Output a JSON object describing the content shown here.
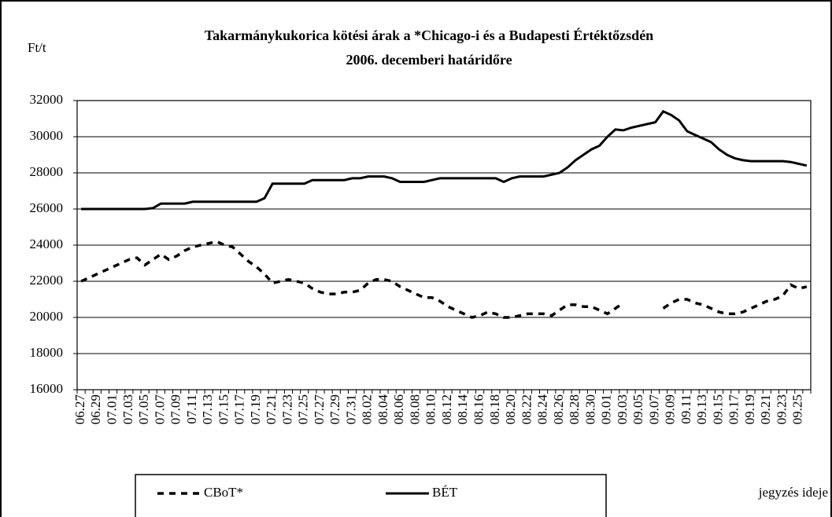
{
  "chart_data": {
    "type": "line",
    "title": [
      "Takarmánykukorica kötési árak a *Chicago-i és a Budapesti Értéktőzsdén",
      "2006. decemberi határidőre"
    ],
    "y_label": "Ft/t",
    "x_label": "jegyzés ideje",
    "categories": [
      "06.27",
      null,
      "06.29",
      null,
      "07.01",
      null,
      "07.03",
      null,
      "07.05",
      null,
      "07.07",
      null,
      "07.09",
      null,
      "07.11",
      null,
      "07.13",
      null,
      "07.15",
      null,
      "07.17",
      null,
      "07.19",
      null,
      "07.21",
      null,
      "07.23",
      null,
      "07.25",
      null,
      "07.27",
      null,
      "07.29",
      null,
      "07.31",
      null,
      "08.02",
      null,
      "08.04",
      null,
      "08.06",
      null,
      "08.08",
      null,
      "08.10",
      null,
      "08.12",
      null,
      "08.14",
      null,
      "08.16",
      null,
      "08.18",
      null,
      "08.20",
      null,
      "08.22",
      null,
      "08.24",
      null,
      "08.26",
      null,
      "08.28",
      null,
      "08.30",
      null,
      "09.01",
      null,
      "09.03",
      null,
      "09.05",
      null,
      "09.07",
      null,
      "09.09",
      null,
      "09.11",
      null,
      "09.13",
      null,
      "09.15",
      null,
      "09.17",
      null,
      "09.19",
      null,
      "09.21",
      null,
      "09.23",
      null,
      "09.25",
      null
    ],
    "series": [
      {
        "name": "CBoT*",
        "color": "#000000",
        "style": "dashed",
        "values": [
          22000,
          22200,
          22400,
          22600,
          22800,
          23000,
          23200,
          23300,
          22900,
          23200,
          23500,
          23200,
          23400,
          23700,
          23900,
          24000,
          24100,
          24200,
          24000,
          23900,
          23500,
          23100,
          22800,
          22400,
          21900,
          22000,
          22100,
          22000,
          21900,
          21600,
          21400,
          21300,
          21300,
          21400,
          21400,
          21500,
          21900,
          22100,
          22100,
          22000,
          21700,
          21500,
          21300,
          21100,
          21100,
          20900,
          20600,
          20400,
          20200,
          20000,
          20100,
          20300,
          20200,
          20000,
          20000,
          20100,
          20200,
          20200,
          20200,
          20100,
          20400,
          20700,
          20700,
          20600,
          20600,
          20400,
          20200,
          20500,
          20800,
          null,
          null,
          null,
          null,
          20500,
          20800,
          21000,
          21000,
          20800,
          20700,
          20500,
          20300,
          20200,
          20200,
          20300,
          20500,
          20700,
          20900,
          21000,
          21200,
          21800,
          21600,
          21700
        ]
      },
      {
        "name": "BÉT",
        "color": "#000000",
        "style": "solid",
        "values": [
          26000,
          26000,
          26000,
          26000,
          26000,
          26000,
          26000,
          26000,
          26000,
          26050,
          26300,
          26300,
          26300,
          26300,
          26400,
          26400,
          26400,
          26400,
          26400,
          26400,
          26400,
          26400,
          26400,
          26600,
          27400,
          27400,
          27400,
          27400,
          27400,
          27600,
          27600,
          27600,
          27600,
          27600,
          27700,
          27700,
          27800,
          27800,
          27800,
          27700,
          27500,
          27500,
          27500,
          27500,
          27600,
          27700,
          27700,
          27700,
          27700,
          27700,
          27700,
          27700,
          27700,
          27500,
          27700,
          27800,
          27800,
          27800,
          27800,
          27900,
          28000,
          28300,
          28700,
          29000,
          29300,
          29500,
          30000,
          30400,
          30350,
          30500,
          30600,
          30700,
          30800,
          31400,
          31200,
          30900,
          30300,
          30100,
          29900,
          29700,
          29300,
          29000,
          28800,
          28700,
          28650,
          28650,
          28650,
          28650,
          28650,
          28600,
          28500,
          28400
        ]
      }
    ],
    "ylim": [
      16000,
      32000
    ],
    "yticks": [
      16000,
      18000,
      20000,
      22000,
      24000,
      26000,
      28000,
      30000,
      32000
    ],
    "grid": true
  }
}
